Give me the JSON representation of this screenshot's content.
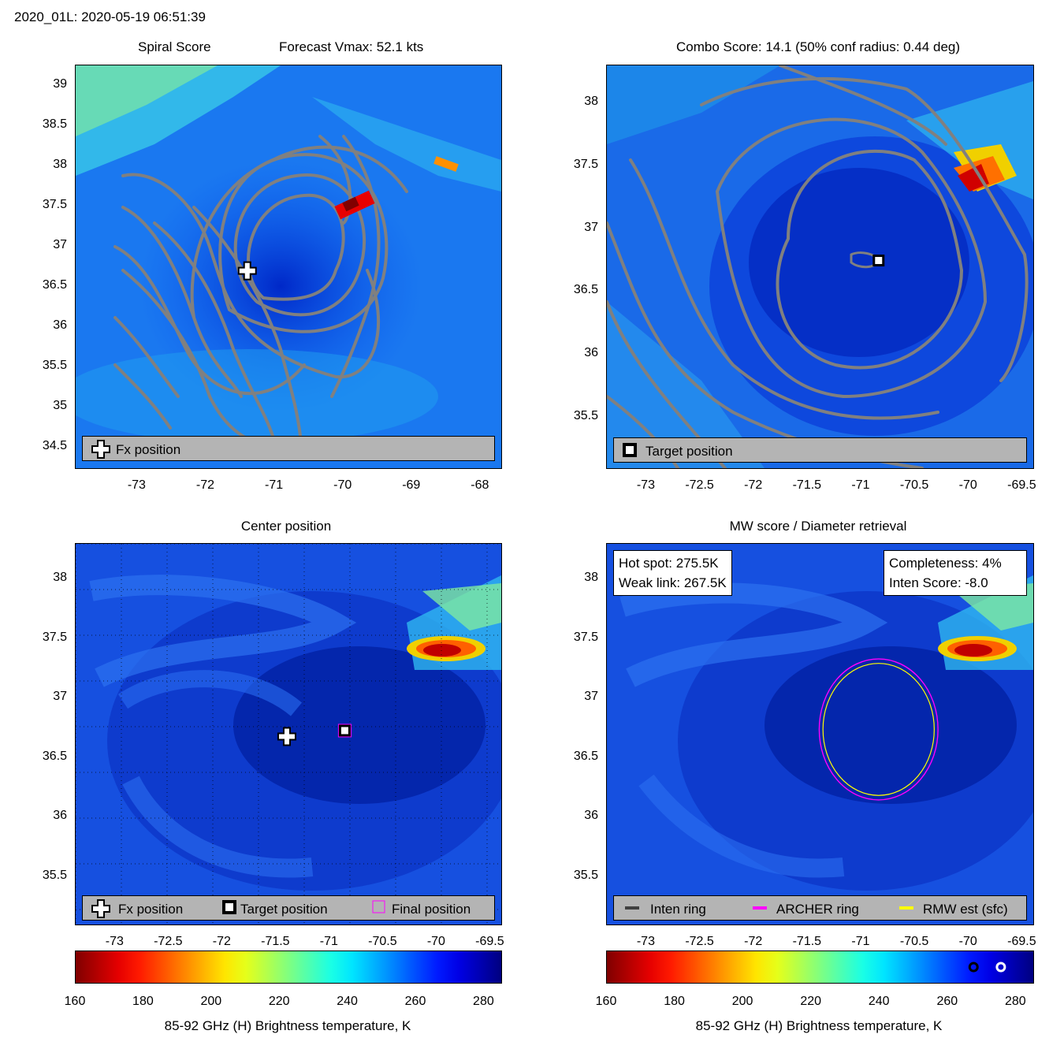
{
  "header": {
    "storm_time": "2020_01L: 2020-05-19 06:51:39"
  },
  "panels": {
    "spiral": {
      "title_left": "Spiral Score",
      "title_right": "Forecast Vmax: 52.1 kts",
      "yticks": [
        "39",
        "38.5",
        "38",
        "37.5",
        "37",
        "36.5",
        "36",
        "35.5",
        "35",
        "34.5"
      ],
      "xticks": [
        "-73",
        "-72",
        "-71",
        "-70",
        "-69",
        "-68"
      ],
      "legend": {
        "fx": "Fx position"
      }
    },
    "combo": {
      "title": "Combo Score: 14.1  (50% conf radius: 0.44 deg)",
      "yticks": [
        "38",
        "37.5",
        "37",
        "36.5",
        "36",
        "35.5"
      ],
      "xticks": [
        "-73",
        "-72.5",
        "-72",
        "-71.5",
        "-71",
        "-70.5",
        "-70",
        "-69.5"
      ],
      "legend": {
        "target": "Target position"
      }
    },
    "center": {
      "title": "Center position",
      "yticks": [
        "38",
        "37.5",
        "37",
        "36.5",
        "36",
        "35.5"
      ],
      "xticks": [
        "-73",
        "-72.5",
        "-72",
        "-71.5",
        "-71",
        "-70.5",
        "-70",
        "-69.5"
      ],
      "legend": {
        "fx": "Fx position",
        "target": "Target position",
        "final": "Final position"
      }
    },
    "mw": {
      "title": "MW score / Diameter retrieval",
      "yticks": [
        "38",
        "37.5",
        "37",
        "36.5",
        "36",
        "35.5"
      ],
      "xticks": [
        "-73",
        "-72.5",
        "-72",
        "-71.5",
        "-71",
        "-70.5",
        "-70",
        "-69.5"
      ],
      "hot_spot": "Hot spot: 275.5K",
      "weak_link": "Weak link: 267.5K",
      "completeness": "Completeness: 4%",
      "inten_score": "Inten Score: -8.0",
      "legend": {
        "inten": "Inten ring",
        "archer": "ARCHER ring",
        "rmw": "RMW est (sfc)"
      }
    }
  },
  "colorbar": {
    "ticks": [
      "160",
      "180",
      "200",
      "220",
      "240",
      "260",
      "280"
    ],
    "label": "85-92 GHz (H) Brightness temperature, K"
  },
  "colors": {
    "contour": "#808080",
    "archer_ring": "#ff00ff",
    "rmw_ring": "#ffff00",
    "inten_ring": "#404040",
    "legend_bg": "#b4b4b4"
  },
  "chart_data": [
    {
      "type": "heatmap",
      "title": "Spiral Score",
      "subtitle": "Forecast Vmax: 52.1 kts",
      "xlim": [
        -73.9,
        -67.7
      ],
      "ylim": [
        34.25,
        39.25
      ],
      "markers": {
        "fx_position": {
          "x": -71.4,
          "y": 36.7
        }
      }
    },
    {
      "type": "heatmap",
      "title": "Combo Score: 14.1  (50% conf radius: 0.44 deg)",
      "xlim": [
        -73.37,
        -69.4
      ],
      "ylim": [
        35.1,
        38.3
      ],
      "markers": {
        "target_position": {
          "x": -70.84,
          "y": 36.75
        }
      }
    },
    {
      "type": "heatmap",
      "title": "Center position",
      "xlim": [
        -73.37,
        -69.4
      ],
      "ylim": [
        35.1,
        38.3
      ],
      "markers": {
        "fx_position": {
          "x": -71.4,
          "y": 36.68
        },
        "target_position": {
          "x": -70.86,
          "y": 36.73
        },
        "final_position": {
          "x": -70.86,
          "y": 36.73
        }
      }
    },
    {
      "type": "heatmap",
      "title": "MW score / Diameter retrieval",
      "xlim": [
        -73.37,
        -69.4
      ],
      "ylim": [
        35.1,
        38.3
      ],
      "rings": {
        "center": {
          "x": -70.84,
          "y": 36.74
        },
        "archer_radius_deg": 0.79,
        "rmw_radius_deg": 0.74
      },
      "hot_spot_K": 275.5,
      "weak_link_K": 267.5,
      "completeness_pct": 4,
      "inten_score": -8.0
    },
    {
      "type": "colorbar",
      "range": [
        160,
        285
      ],
      "ticks": [
        160,
        180,
        200,
        220,
        240,
        260,
        280
      ],
      "label": "85-92 GHz (H) Brightness temperature, K",
      "markers_K": {
        "weak_link": 267.5,
        "hot_spot": 275.5
      }
    }
  ]
}
